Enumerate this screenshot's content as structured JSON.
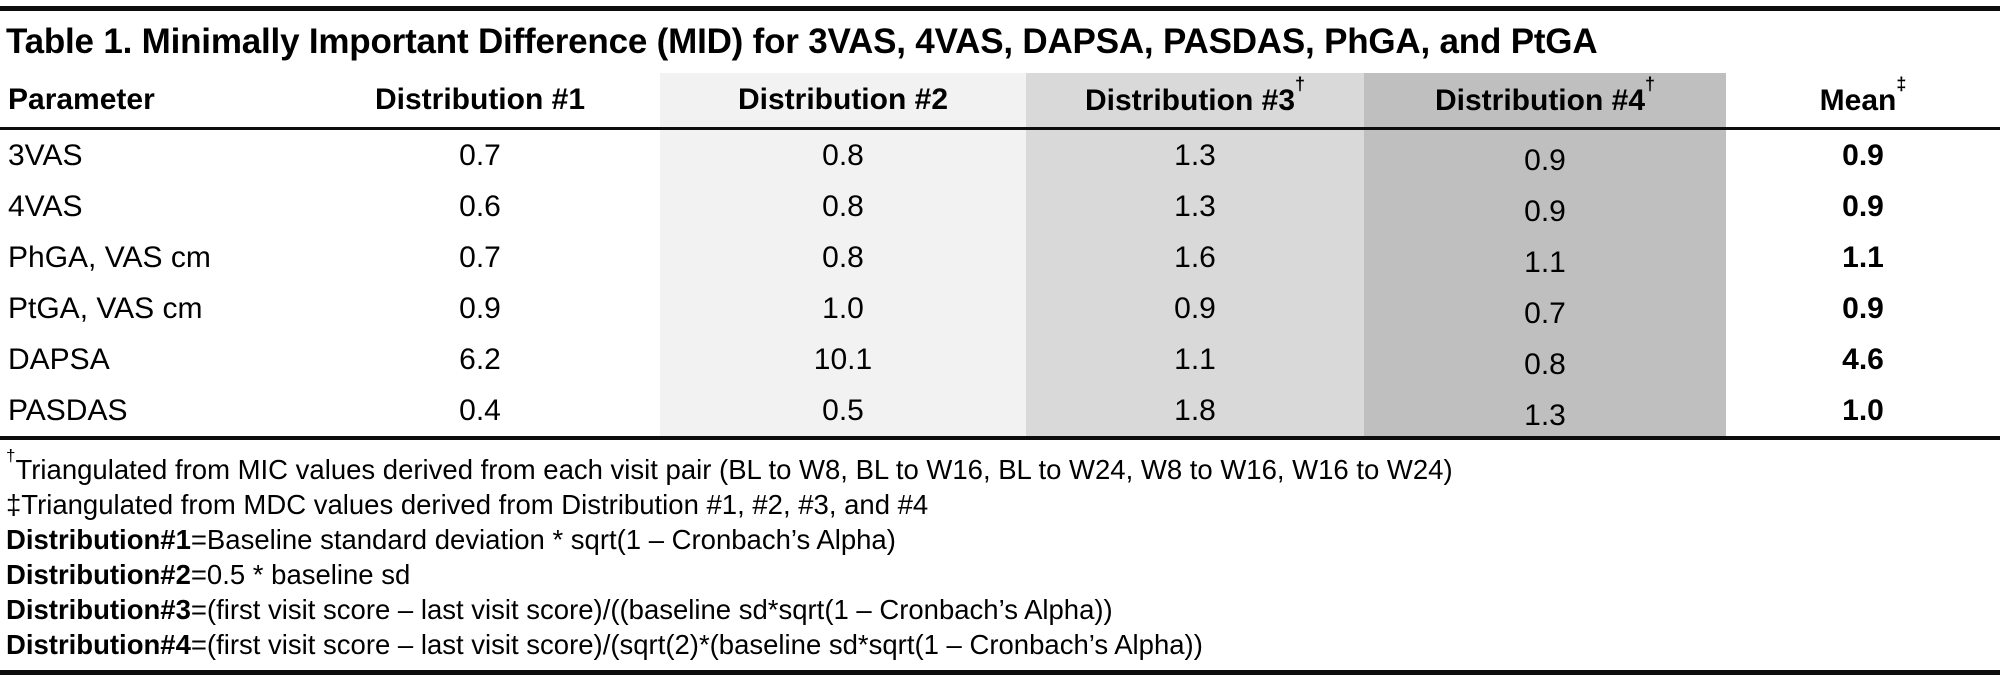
{
  "title": "Table 1. Minimally Important Difference (MID) for 3VAS, 4VAS, DAPSA, PASDAS, PhGA, and PtGA",
  "table": {
    "columns": [
      {
        "label": "Parameter",
        "sup": ""
      },
      {
        "label": "Distribution #1",
        "sup": ""
      },
      {
        "label": "Distribution #2",
        "sup": ""
      },
      {
        "label": "Distribution #3",
        "sup": "†"
      },
      {
        "label": "Distribution #4",
        "sup": "†"
      },
      {
        "label": "Mean",
        "sup": "‡"
      }
    ],
    "rows": [
      [
        "3VAS",
        "0.7",
        "0.8",
        "1.3",
        "0.9",
        "0.9"
      ],
      [
        "4VAS",
        "0.6",
        "0.8",
        "1.3",
        "0.9",
        "0.9"
      ],
      [
        "PhGA, VAS cm",
        "0.7",
        "0.8",
        "1.6",
        "1.1",
        "1.1"
      ],
      [
        "PtGA, VAS cm",
        "0.9",
        "1.0",
        "0.9",
        "0.7",
        "0.9"
      ],
      [
        "DAPSA",
        "6.2",
        "10.1",
        "1.1",
        "0.8",
        "4.6"
      ],
      [
        "PASDAS",
        "0.4",
        "0.5",
        "1.8",
        "1.3",
        "1.0"
      ]
    ]
  },
  "column_shading": {
    "distribution2": "#f2f2f2",
    "distribution3": "#d9d9d9",
    "distribution4": "#bfbfbf"
  },
  "footnotes": [
    {
      "sup": "†",
      "text": "Triangulated from MIC values derived from each visit pair (BL to W8, BL to W16, BL to W24, W8 to W16, W16 to W24)"
    },
    {
      "text": "‡Triangulated from MDC values derived from Distribution #1, #2, #3, and #4"
    },
    {
      "bold": "Distribution#1",
      "text": "=Baseline standard deviation * sqrt(1 – Cronbach’s Alpha)"
    },
    {
      "bold": "Distribution#2",
      "text": "=0.5 * baseline sd"
    },
    {
      "bold": "Distribution#3",
      "text": "=(first visit score – last visit score)/((baseline sd*sqrt(1 – Cronbach’s Alpha))"
    },
    {
      "bold": "Distribution#4",
      "text": "=(first visit score – last visit score)/(sqrt(2)*(baseline sd*sqrt(1 – Cronbach’s Alpha))"
    }
  ]
}
